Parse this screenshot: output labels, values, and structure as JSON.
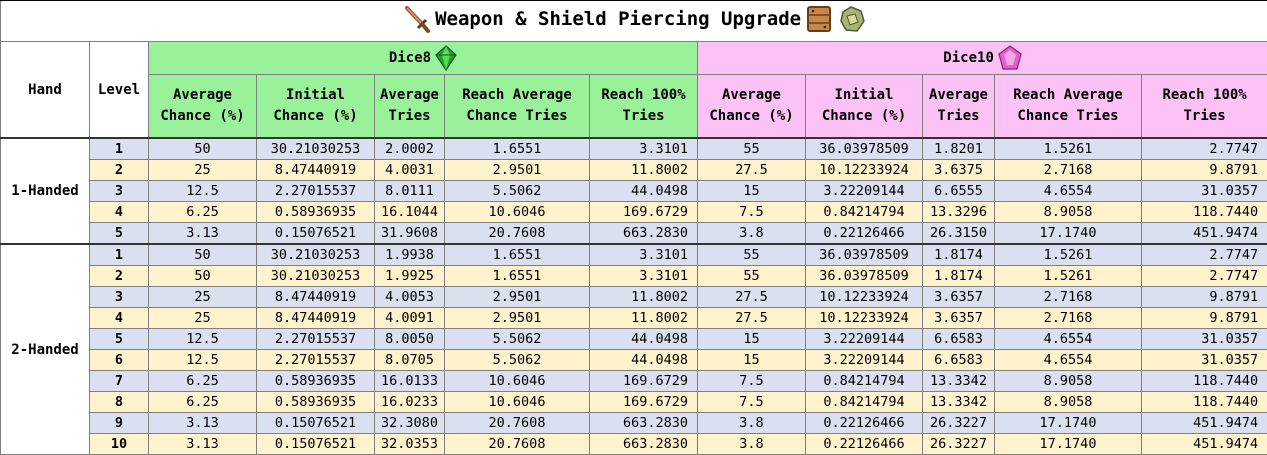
{
  "title": "Weapon & Shield Piercing Upgrade",
  "icons": [
    "sword-icon",
    "shield-icon",
    "gem-icon"
  ],
  "colors": {
    "dice8": "#99f299",
    "dice10": "#fcc2f5",
    "row_blue": "#dae0f0",
    "row_yellow": "#fff2cc"
  },
  "headers": {
    "hand": "Hand",
    "level": "Level",
    "dice8": "Dice8",
    "dice10": "Dice10",
    "cols": [
      "Average Chance (%)",
      "Initial Chance (%)",
      "Average Tries",
      "Reach Average Chance Tries",
      "Reach 100% Tries"
    ]
  },
  "groups": [
    {
      "hand": "1-Handed",
      "rows": [
        {
          "level": "1",
          "d8": [
            "50",
            "30.21030253",
            "2.0002",
            "1.6551",
            "3.3101"
          ],
          "d10": [
            "55",
            "36.03978509",
            "1.8201",
            "1.5261",
            "2.7747"
          ]
        },
        {
          "level": "2",
          "d8": [
            "25",
            "8.47440919",
            "4.0031",
            "2.9501",
            "11.8002"
          ],
          "d10": [
            "27.5",
            "10.12233924",
            "3.6375",
            "2.7168",
            "9.8791"
          ]
        },
        {
          "level": "3",
          "d8": [
            "12.5",
            "2.27015537",
            "8.0111",
            "5.5062",
            "44.0498"
          ],
          "d10": [
            "15",
            "3.22209144",
            "6.6555",
            "4.6554",
            "31.0357"
          ]
        },
        {
          "level": "4",
          "d8": [
            "6.25",
            "0.58936935",
            "16.1044",
            "10.6046",
            "169.6729"
          ],
          "d10": [
            "7.5",
            "0.84214794",
            "13.3296",
            "8.9058",
            "118.7440"
          ]
        },
        {
          "level": "5",
          "d8": [
            "3.13",
            "0.15076521",
            "31.9608",
            "20.7608",
            "663.2830"
          ],
          "d10": [
            "3.8",
            "0.22126466",
            "26.3150",
            "17.1740",
            "451.9474"
          ]
        }
      ]
    },
    {
      "hand": "2-Handed",
      "rows": [
        {
          "level": "1",
          "d8": [
            "50",
            "30.21030253",
            "1.9938",
            "1.6551",
            "3.3101"
          ],
          "d10": [
            "55",
            "36.03978509",
            "1.8174",
            "1.5261",
            "2.7747"
          ]
        },
        {
          "level": "2",
          "d8": [
            "50",
            "30.21030253",
            "1.9925",
            "1.6551",
            "3.3101"
          ],
          "d10": [
            "55",
            "36.03978509",
            "1.8174",
            "1.5261",
            "2.7747"
          ]
        },
        {
          "level": "3",
          "d8": [
            "25",
            "8.47440919",
            "4.0053",
            "2.9501",
            "11.8002"
          ],
          "d10": [
            "27.5",
            "10.12233924",
            "3.6357",
            "2.7168",
            "9.8791"
          ]
        },
        {
          "level": "4",
          "d8": [
            "25",
            "8.47440919",
            "4.0091",
            "2.9501",
            "11.8002"
          ],
          "d10": [
            "27.5",
            "10.12233924",
            "3.6357",
            "2.7168",
            "9.8791"
          ]
        },
        {
          "level": "5",
          "d8": [
            "12.5",
            "2.27015537",
            "8.0050",
            "5.5062",
            "44.0498"
          ],
          "d10": [
            "15",
            "3.22209144",
            "6.6583",
            "4.6554",
            "31.0357"
          ]
        },
        {
          "level": "6",
          "d8": [
            "12.5",
            "2.27015537",
            "8.0705",
            "5.5062",
            "44.0498"
          ],
          "d10": [
            "15",
            "3.22209144",
            "6.6583",
            "4.6554",
            "31.0357"
          ]
        },
        {
          "level": "7",
          "d8": [
            "6.25",
            "0.58936935",
            "16.0133",
            "10.6046",
            "169.6729"
          ],
          "d10": [
            "7.5",
            "0.84214794",
            "13.3342",
            "8.9058",
            "118.7440"
          ]
        },
        {
          "level": "8",
          "d8": [
            "6.25",
            "0.58936935",
            "16.0233",
            "10.6046",
            "169.6729"
          ],
          "d10": [
            "7.5",
            "0.84214794",
            "13.3342",
            "8.9058",
            "118.7440"
          ]
        },
        {
          "level": "9",
          "d8": [
            "3.13",
            "0.15076521",
            "32.3080",
            "20.7608",
            "663.2830"
          ],
          "d10": [
            "3.8",
            "0.22126466",
            "26.3227",
            "17.1740",
            "451.9474"
          ]
        },
        {
          "level": "10",
          "d8": [
            "3.13",
            "0.15076521",
            "32.0353",
            "20.7608",
            "663.2830"
          ],
          "d10": [
            "3.8",
            "0.22126466",
            "26.3227",
            "17.1740",
            "451.9474"
          ]
        }
      ]
    }
  ]
}
